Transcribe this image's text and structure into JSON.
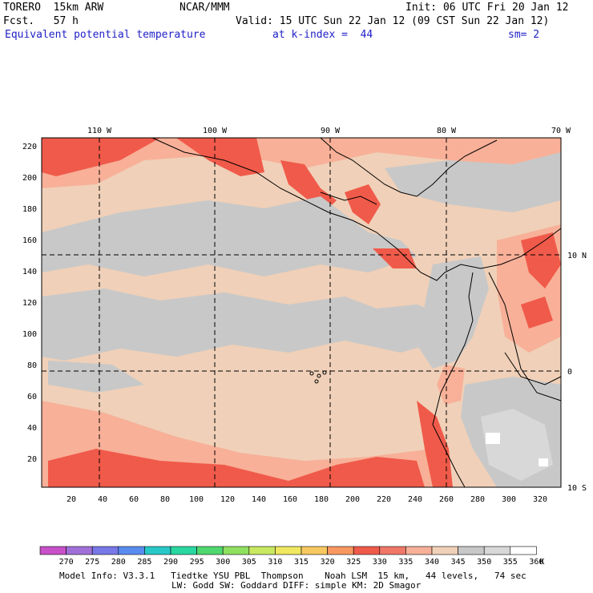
{
  "header": {
    "model": "TORERO  15km ARW",
    "org": "NCAR/MMM",
    "init": "Init: 06 UTC Fri 20 Jan 12",
    "fcst": "Fcst.   57 h",
    "valid": "Valid: 15 UTC Sun 22 Jan 12 (09 CST Sun 22 Jan 12)",
    "field": "Equivalent potential temperature",
    "level": "at k-index =  44",
    "smooth": "sm= 2"
  },
  "map": {
    "lon_labels": [
      "110 W",
      "100 W",
      "90 W",
      "80 W",
      "70 W"
    ],
    "lat_labels": [
      "10 N",
      "0",
      "10 S"
    ],
    "y_ticks": [
      "220",
      "200",
      "180",
      "160",
      "140",
      "120",
      "100",
      "80",
      "60",
      "40",
      "20"
    ],
    "x_ticks": [
      "20",
      "40",
      "60",
      "80",
      "100",
      "120",
      "140",
      "160",
      "180",
      "200",
      "220",
      "240",
      "260",
      "280",
      "300",
      "320"
    ]
  },
  "legend": {
    "labels": [
      "270",
      "275",
      "280",
      "285",
      "290",
      "295",
      "300",
      "305",
      "310",
      "315",
      "320",
      "325",
      "330",
      "335",
      "340",
      "345",
      "350",
      "355",
      "360"
    ],
    "unit": "K",
    "colors": [
      "#c850c8",
      "#a070d8",
      "#7878e8",
      "#5a8cf0",
      "#28c8c8",
      "#28d8a0",
      "#50d870",
      "#90e060",
      "#c8e860",
      "#f0e860",
      "#f8c860",
      "#f89860",
      "#f05a4a",
      "#f07868",
      "#f8b098",
      "#f0d0b8",
      "#c8c8c8",
      "#d8d8d8",
      "#ffffff"
    ]
  },
  "footer": {
    "line1": "Model Info: V3.3.1   Tiedtke YSU PBL  Thompson    Noah LSM  15 km,   44 levels,   74 sec",
    "line2": "LW: Godd SW: Goddard DIFF: simple KM: 2D Smagor"
  }
}
